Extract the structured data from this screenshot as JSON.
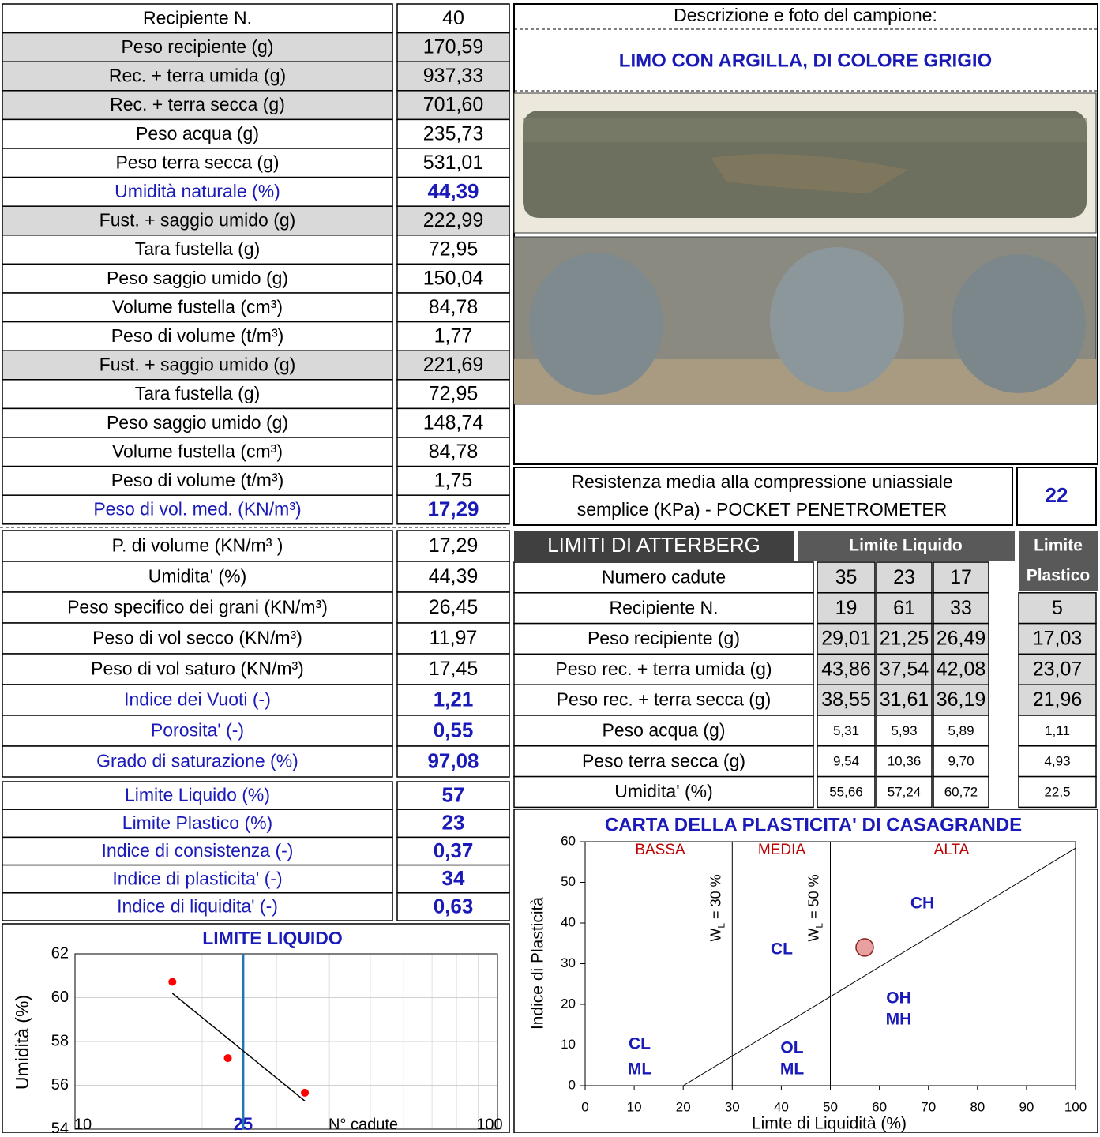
{
  "sample_table": {
    "rows": [
      [
        "Recipiente N.",
        "40"
      ],
      [
        "Peso recipiente (g)",
        "170,59"
      ],
      [
        "Rec. + terra umida (g)",
        "937,33"
      ],
      [
        "Rec. + terra secca (g)",
        "701,60"
      ],
      [
        "Peso acqua (g)",
        "235,73"
      ],
      [
        "Peso terra secca (g)",
        "531,01"
      ],
      [
        "Umidità naturale (%)",
        "44,39"
      ],
      [
        "Fust. + saggio umido (g)",
        "222,99"
      ],
      [
        "Tara fustella (g)",
        "72,95"
      ],
      [
        "Peso saggio umido (g)",
        "150,04"
      ],
      [
        "Volume fustella (cm³)",
        "84,78"
      ],
      [
        "Peso di volume (t/m³)",
        "1,77"
      ],
      [
        "Fust. + saggio umido (g)",
        "221,69"
      ],
      [
        "Tara fustella (g)",
        "72,95"
      ],
      [
        "Peso saggio umido (g)",
        "148,74"
      ],
      [
        "Volume fustella (cm³)",
        "84,78"
      ],
      [
        "Peso di volume (t/m³)",
        "1,75"
      ],
      [
        "Peso di vol. med. (KN/m³)",
        "17,29"
      ]
    ]
  },
  "properties_table": {
    "rows": [
      [
        "P. di volume (KN/m³ )",
        "17,29"
      ],
      [
        "Umidita' (%)",
        "44,39"
      ],
      [
        "Peso specifico dei grani (KN/m³)",
        "26,45"
      ],
      [
        "Peso di vol secco (KN/m³)",
        "11,97"
      ],
      [
        "Peso di vol saturo (KN/m³)",
        "17,45"
      ],
      [
        "Indice dei Vuoti (-)",
        "1,21"
      ],
      [
        "Porosita' (-)",
        "0,55"
      ],
      [
        "Grado di saturazione (%)",
        "97,08"
      ]
    ]
  },
  "limits_table": {
    "rows": [
      [
        "Limite Liquido (%)",
        "57"
      ],
      [
        "Limite Plastico (%)",
        "23"
      ],
      [
        "Indice di consistenza (-)",
        "0,37"
      ],
      [
        "Indice di plasticita' (-)",
        "34"
      ],
      [
        "Indice di liquidita' (-)",
        "0,63"
      ]
    ]
  },
  "description": {
    "title": "Descrizione e foto del campione:",
    "text": "LIMO CON ARGILLA, DI COLORE GRIGIO"
  },
  "pocket": {
    "label_line1": "Resistenza media alla compressione uniassiale",
    "label_line2": "semplice (KPa) - POCKET PENETROMETER",
    "value": "22"
  },
  "atterberg": {
    "title": "LIMITI DI ATTERBERG",
    "liquid_header": "Limite Liquido",
    "plastic_header_line1": "Limite",
    "plastic_header_line2": "Plastico",
    "rows": [
      {
        "label": "Numero cadute",
        "values": [
          "35",
          "23",
          "17"
        ]
      },
      {
        "label": "Recipiente N.",
        "values": [
          "19",
          "61",
          "33",
          "5"
        ]
      },
      {
        "label": "Peso recipiente (g)",
        "values": [
          "29,01",
          "21,25",
          "26,49",
          "17,03"
        ]
      },
      {
        "label": "Peso rec. + terra umida (g)",
        "values": [
          "43,86",
          "37,54",
          "42,08",
          "23,07"
        ]
      },
      {
        "label": "Peso rec. + terra secca (g)",
        "values": [
          "38,55",
          "31,61",
          "36,19",
          "21,96"
        ]
      },
      {
        "label": "Peso acqua (g)",
        "values": [
          "5,31",
          "5,93",
          "5,89",
          "1,11"
        ]
      },
      {
        "label": "Peso terra secca (g)",
        "values": [
          "9,54",
          "10,36",
          "9,70",
          "4,93"
        ]
      },
      {
        "label": "Umidita' (%)",
        "values": [
          "55,66",
          "57,24",
          "60,72",
          "22,5"
        ]
      }
    ]
  },
  "liquid_chart": {
    "type": "scatter",
    "title": "LIMITE LIQUIDO",
    "y_label": "Umidità (%)",
    "x_label": "N° cadute",
    "xlim": [
      10,
      100
    ],
    "ylim": [
      54,
      62
    ],
    "xticks": [
      10,
      100
    ],
    "yticks": [
      54,
      56,
      58,
      60,
      62
    ],
    "log_x": true,
    "marker_line": 25,
    "point_color": "#ff0000",
    "trend_color": "#000000",
    "marker_color": "#1f77b4"
  },
  "casagrande_chart": {
    "type": "scatter",
    "title": "CARTA DELLA PLASTICITA' DI CASAGRANDE",
    "x_label": "Limte di Liquidità (%)",
    "y_label": "Indice di Plasticità",
    "xlim": [
      0,
      100
    ],
    "ylim": [
      0,
      60
    ],
    "xticks": [
      0,
      10,
      20,
      30,
      40,
      50,
      60,
      70,
      80,
      90,
      100
    ],
    "yticks": [
      0,
      10,
      20,
      30,
      40,
      50,
      60
    ],
    "zones": [
      "BASSA",
      "MEDIA",
      "ALTA"
    ],
    "limit_lines": [
      {
        "value": 30,
        "main": "W",
        "sub": "L",
        "rest": " = 30 %"
      },
      {
        "value": 50,
        "main": "W",
        "sub": "L",
        "rest": " = 50 %"
      }
    ],
    "a_line": {
      "x": [
        20,
        100
      ],
      "y": [
        0,
        58.4
      ]
    },
    "class_labels": [
      "CH",
      "CL",
      "OH",
      "MH",
      "CL",
      "ML",
      "OL",
      "ML"
    ]
  }
}
